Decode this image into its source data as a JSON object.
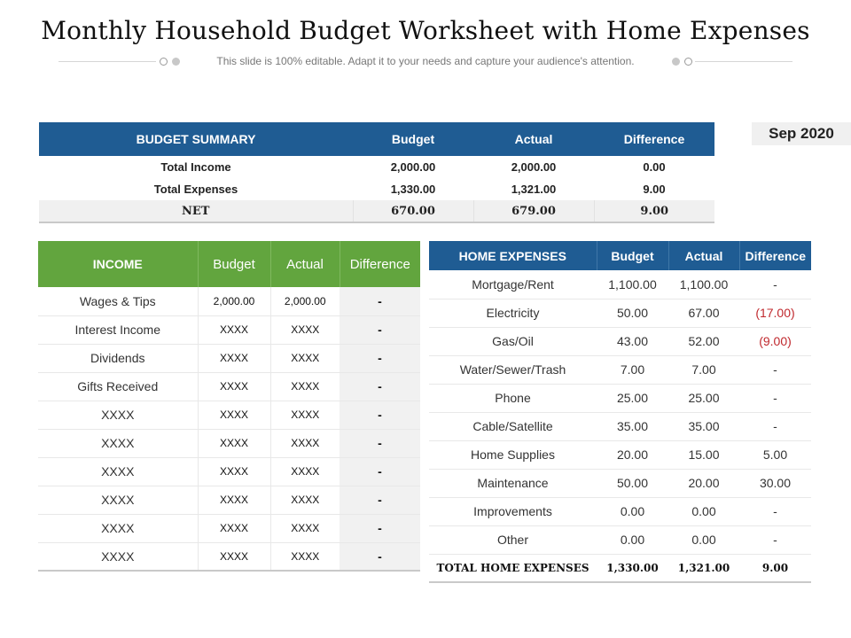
{
  "title": "Monthly Household Budget Worksheet with Home Expenses",
  "subtitle": "This slide is 100% editable. Adapt it to your needs and capture your audience's attention.",
  "date": "Sep 2020",
  "summary": {
    "headers": [
      "BUDGET SUMMARY",
      "Budget",
      "Actual",
      "Difference"
    ],
    "rows": [
      [
        "Total Income",
        "2,000.00",
        "2,000.00",
        "0.00"
      ],
      [
        "Total Expenses",
        "1,330.00",
        "1,321.00",
        "9.00"
      ],
      [
        "NET",
        "670.00",
        "679.00",
        "9.00"
      ]
    ]
  },
  "income": {
    "headers": [
      "INCOME",
      "Budget",
      "Actual",
      "Difference"
    ],
    "rows": [
      [
        "Wages & Tips",
        "2,000.00",
        "2,000.00",
        "-"
      ],
      [
        "Interest Income",
        "XXXX",
        "XXXX",
        "-"
      ],
      [
        "Dividends",
        "XXXX",
        "XXXX",
        "-"
      ],
      [
        "Gifts Received",
        "XXXX",
        "XXXX",
        "-"
      ],
      [
        "XXXX",
        "XXXX",
        "XXXX",
        "-"
      ],
      [
        "XXXX",
        "XXXX",
        "XXXX",
        "-"
      ],
      [
        "XXXX",
        "XXXX",
        "XXXX",
        "-"
      ],
      [
        "XXXX",
        "XXXX",
        "XXXX",
        "-"
      ],
      [
        "XXXX",
        "XXXX",
        "XXXX",
        "-"
      ],
      [
        "XXXX",
        "XXXX",
        "XXXX",
        "-"
      ]
    ]
  },
  "home": {
    "headers": [
      "HOME EXPENSES",
      "Budget",
      "Actual",
      "Difference"
    ],
    "rows": [
      [
        "Mortgage/Rent",
        "1,100.00",
        "1,100.00",
        "-"
      ],
      [
        "Electricity",
        "50.00",
        "67.00",
        "(17.00)"
      ],
      [
        "Gas/Oil",
        "43.00",
        "52.00",
        "(9.00)"
      ],
      [
        "Water/Sewer/Trash",
        "7.00",
        "7.00",
        "-"
      ],
      [
        "Phone",
        "25.00",
        "25.00",
        "-"
      ],
      [
        "Cable/Satellite",
        "35.00",
        "35.00",
        "-"
      ],
      [
        "Home Supplies",
        "20.00",
        "15.00",
        "5.00"
      ],
      [
        "Maintenance",
        "50.00",
        "20.00",
        "30.00"
      ],
      [
        "Improvements",
        "0.00",
        "0.00",
        "-"
      ],
      [
        "Other",
        "0.00",
        "0.00",
        "-"
      ]
    ],
    "total": [
      "TOTAL HOME EXPENSES",
      "1,330.00",
      "1,321.00",
      "9.00"
    ]
  },
  "colors": {
    "blue_header": "#1f5c93",
    "green_header": "#62a53e",
    "negative_text": "#c0282d"
  }
}
